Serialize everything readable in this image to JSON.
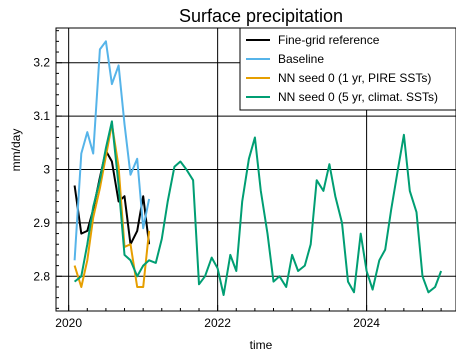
{
  "chart_data": {
    "type": "line",
    "title": "Surface precipitation",
    "xlabel": "time",
    "ylabel": "mm/day",
    "xlim": [
      2019.83,
      2025.2
    ],
    "ylim": [
      2.735,
      3.265
    ],
    "grid": true,
    "legend_position": "top-right",
    "x_ticks": [
      {
        "value": 2020,
        "label": "2020"
      },
      {
        "value": 2022,
        "label": "2022"
      },
      {
        "value": 2024,
        "label": "2024"
      }
    ],
    "y_ticks": [
      {
        "value": 2.8,
        "label": "2.8"
      },
      {
        "value": 2.9,
        "label": "2.9"
      },
      {
        "value": 3.0,
        "label": "3"
      },
      {
        "value": 3.1,
        "label": "3.1"
      },
      {
        "value": 3.2,
        "label": "3.2"
      }
    ],
    "series": [
      {
        "name": "Fine-grid reference",
        "color": "#000000",
        "x": [
          2020.08,
          2020.17,
          2020.25,
          2020.33,
          2020.42,
          2020.5,
          2020.58,
          2020.67,
          2020.75,
          2020.83,
          2020.92,
          2021.0,
          2021.08
        ],
        "y": [
          2.97,
          2.88,
          2.885,
          2.925,
          2.985,
          3.035,
          3.015,
          2.94,
          2.95,
          2.86,
          2.885,
          2.95,
          2.86
        ]
      },
      {
        "name": "Baseline",
        "color": "#56b4e9",
        "x": [
          2020.08,
          2020.17,
          2020.25,
          2020.33,
          2020.42,
          2020.5,
          2020.58,
          2020.67,
          2020.75,
          2020.83,
          2020.92,
          2021.0,
          2021.08
        ],
        "y": [
          2.83,
          3.03,
          3.07,
          3.03,
          3.225,
          3.24,
          3.16,
          3.195,
          3.085,
          2.99,
          3.02,
          2.89,
          2.945
        ]
      },
      {
        "name": "NN seed 0 (1 yr, PIRE SSTs)",
        "color": "#e69f00",
        "x": [
          2020.08,
          2020.17,
          2020.25,
          2020.33,
          2020.42,
          2020.5,
          2020.58,
          2020.67,
          2020.75,
          2020.83,
          2020.92,
          2021.0,
          2021.08
        ],
        "y": [
          2.82,
          2.78,
          2.83,
          2.91,
          2.965,
          3.025,
          3.085,
          3.005,
          2.855,
          2.86,
          2.78,
          2.78,
          2.885
        ]
      },
      {
        "name": "NN seed 0 (5 yr, climat. SSTs)",
        "color": "#009e73",
        "x": [
          2020.08,
          2020.17,
          2020.25,
          2020.33,
          2020.42,
          2020.5,
          2020.58,
          2020.67,
          2020.75,
          2020.83,
          2020.92,
          2021.0,
          2021.08,
          2021.17,
          2021.25,
          2021.33,
          2021.42,
          2021.5,
          2021.58,
          2021.67,
          2021.75,
          2021.83,
          2021.92,
          2022.0,
          2022.08,
          2022.17,
          2022.25,
          2022.33,
          2022.42,
          2022.5,
          2022.58,
          2022.67,
          2022.75,
          2022.83,
          2022.92,
          2023.0,
          2023.08,
          2023.17,
          2023.25,
          2023.33,
          2023.42,
          2023.5,
          2023.58,
          2023.67,
          2023.75,
          2023.83,
          2023.92,
          2024.0,
          2024.08,
          2024.17,
          2024.25,
          2024.33,
          2024.42,
          2024.5,
          2024.58,
          2024.67,
          2024.75,
          2024.83,
          2024.92,
          2025.0
        ],
        "y": [
          2.79,
          2.8,
          2.86,
          2.93,
          2.98,
          3.04,
          3.09,
          2.97,
          2.84,
          2.83,
          2.8,
          2.82,
          2.83,
          2.825,
          2.87,
          2.94,
          3.005,
          3.015,
          3.0,
          2.98,
          2.785,
          2.8,
          2.835,
          2.815,
          2.765,
          2.84,
          2.81,
          2.94,
          3.02,
          3.06,
          2.96,
          2.88,
          2.79,
          2.8,
          2.78,
          2.84,
          2.81,
          2.82,
          2.86,
          2.98,
          2.96,
          3.01,
          2.95,
          2.9,
          2.79,
          2.77,
          2.88,
          2.81,
          2.775,
          2.83,
          2.85,
          2.925,
          3.0,
          3.065,
          2.96,
          2.92,
          2.8,
          2.77,
          2.78,
          2.81
        ]
      }
    ]
  }
}
